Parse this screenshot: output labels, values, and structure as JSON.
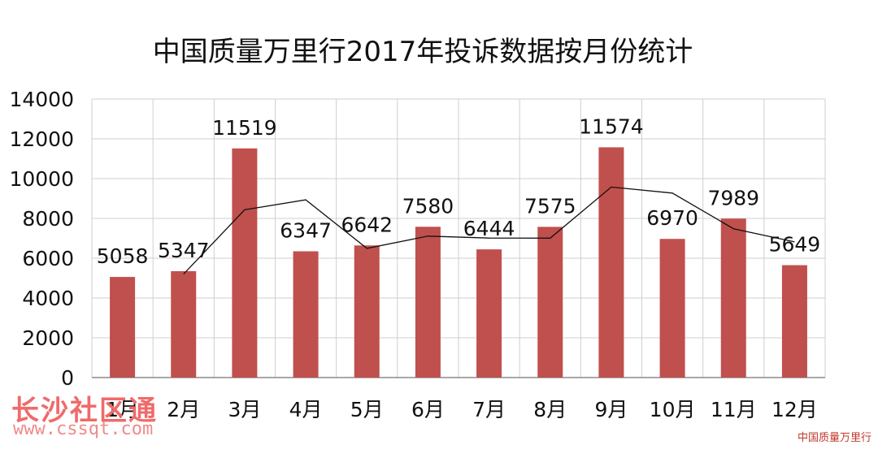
{
  "chart_data": {
    "type": "bar",
    "title": "中国质量万里行2017年投诉数据按月份统计",
    "categories": [
      "1月",
      "2月",
      "3月",
      "4月",
      "5月",
      "6月",
      "7月",
      "8月",
      "9月",
      "10月",
      "11月",
      "12月"
    ],
    "values": [
      5058,
      5347,
      11519,
      6347,
      6642,
      7580,
      6444,
      7575,
      11574,
      6970,
      7989,
      5649
    ],
    "trendline": [
      null,
      5202,
      8433,
      8933,
      6495,
      7111,
      7012,
      7010,
      9575,
      9272,
      7480,
      6819
    ],
    "yticks": [
      0,
      2000,
      4000,
      6000,
      8000,
      10000,
      12000,
      14000
    ],
    "ylim": [
      0,
      14000
    ],
    "grid": true,
    "colors": {
      "bar": "#c0504d",
      "line": "#111111",
      "grid": "#cfcfcf"
    }
  },
  "watermark": {
    "name": "长沙社区通",
    "url": "www.cssqt.com"
  },
  "brand": "中国质量万里行"
}
